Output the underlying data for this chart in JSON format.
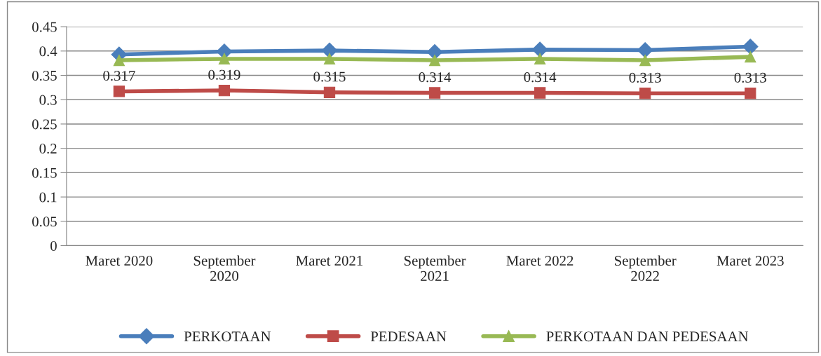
{
  "chart_data": {
    "type": "line",
    "categories": [
      "Maret 2020",
      "September\n2020",
      "Maret 2021",
      "September\n2021",
      "Maret 2022",
      "September\n2022",
      "Maret 2023"
    ],
    "series": [
      {
        "name": "PERKOTAAN",
        "color": "#4a7ebb",
        "marker": "diamond",
        "values": [
          0.393,
          0.399,
          0.401,
          0.398,
          0.403,
          0.402,
          0.409
        ]
      },
      {
        "name": "PEDESAAN",
        "color": "#be4b48",
        "marker": "square",
        "values": [
          0.317,
          0.319,
          0.315,
          0.314,
          0.314,
          0.313,
          0.313
        ],
        "value_labels": [
          "0.317",
          "0.319",
          "0.315",
          "0.314",
          "0.314",
          "0.313",
          "0.313"
        ]
      },
      {
        "name": "PERKOTAAN DAN PEDESAAN",
        "color": "#98b954",
        "marker": "triangle",
        "values": [
          0.381,
          0.384,
          0.384,
          0.381,
          0.384,
          0.381,
          0.388
        ]
      }
    ],
    "ylim": [
      0,
      0.45
    ],
    "yticks": [
      0,
      0.05,
      0.1,
      0.15,
      0.2,
      0.25,
      0.3,
      0.35,
      0.4,
      0.45
    ],
    "grid": "y",
    "legend": "bottom",
    "line_style": "solid"
  }
}
